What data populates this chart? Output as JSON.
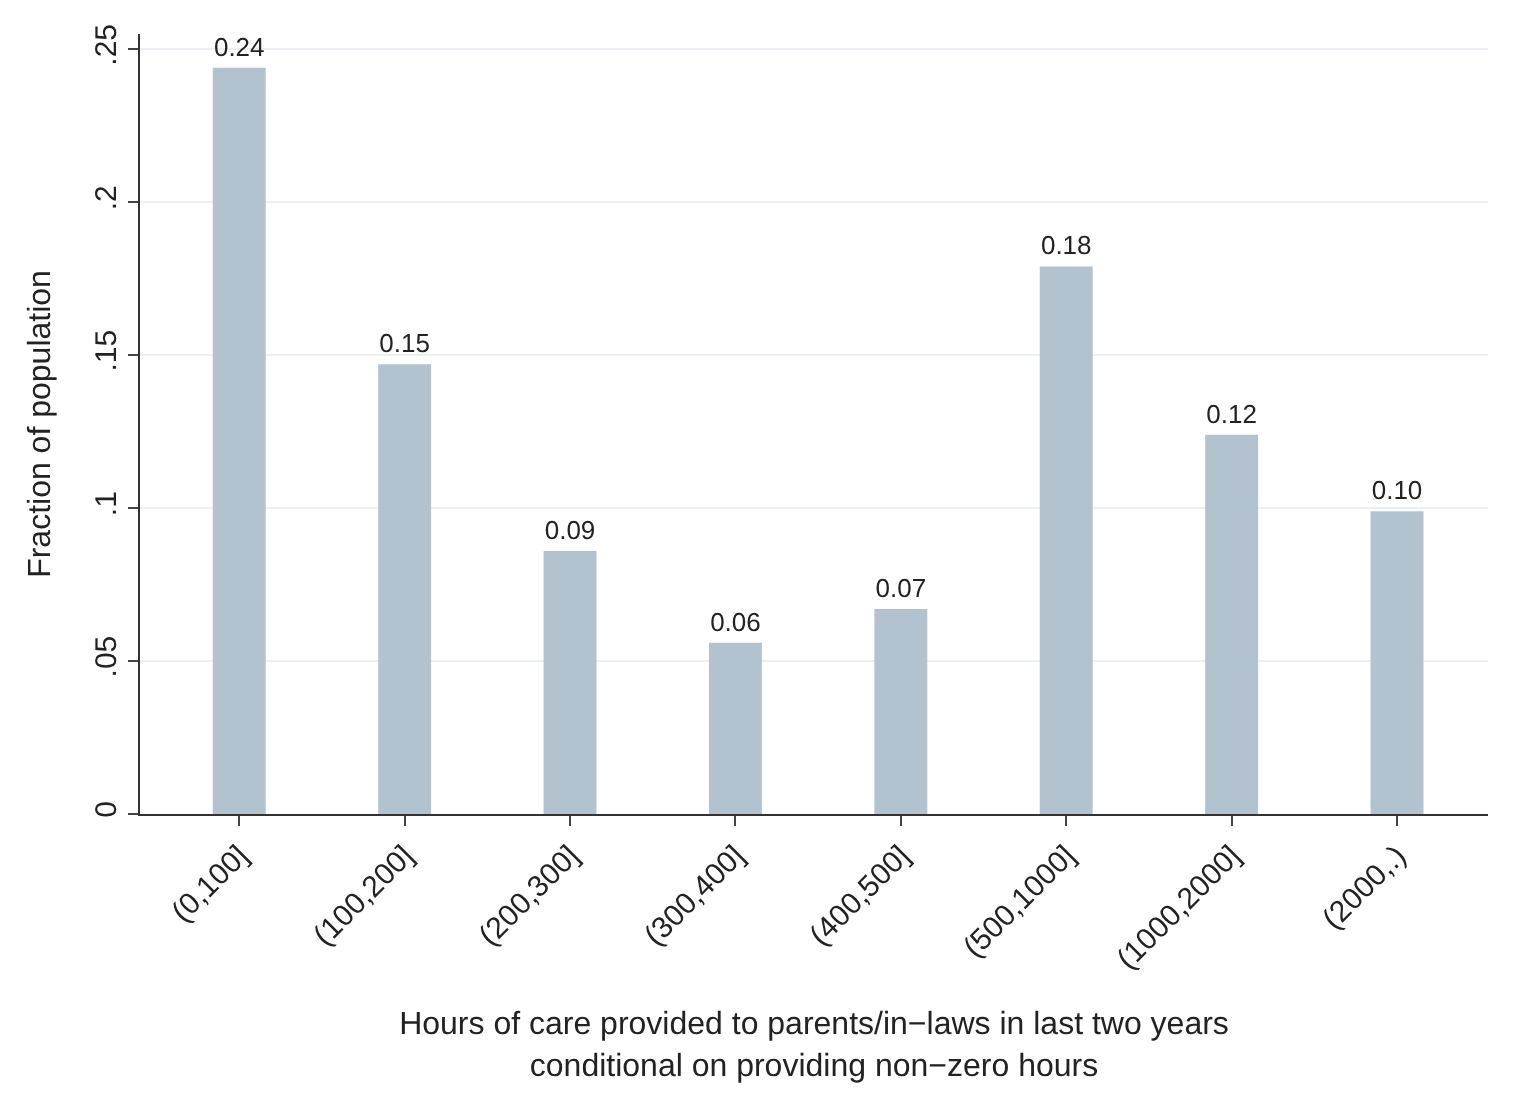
{
  "chart_data": {
    "type": "bar",
    "xlabel": "Hours of care provided to parents/in−laws in last two years\nconditional on providing non−zero hours",
    "ylabel": "Fraction of population",
    "categories": [
      "(0,100]",
      "(100,200]",
      "(200,300]",
      "(300,400]",
      "(400,500]",
      "(500,1000]",
      "(1000,2000]",
      "(2000,.)"
    ],
    "values": [
      0.244,
      0.147,
      0.086,
      0.056,
      0.067,
      0.179,
      0.124,
      0.099
    ],
    "value_labels": [
      "0.24",
      "0.15",
      "0.09",
      "0.06",
      "0.07",
      "0.18",
      "0.12",
      "0.10"
    ],
    "color": "#b3c2cf",
    "ylim": [
      0,
      0.255
    ],
    "yticks": [
      {
        "value": 0,
        "label": "0"
      },
      {
        "value": 0.05,
        "label": ".05"
      },
      {
        "value": 0.1,
        "label": ".1"
      },
      {
        "value": 0.15,
        "label": ".15"
      },
      {
        "value": 0.2,
        "label": ".2"
      },
      {
        "value": 0.25,
        "label": ".25"
      }
    ],
    "grid": "y",
    "legend": false
  }
}
